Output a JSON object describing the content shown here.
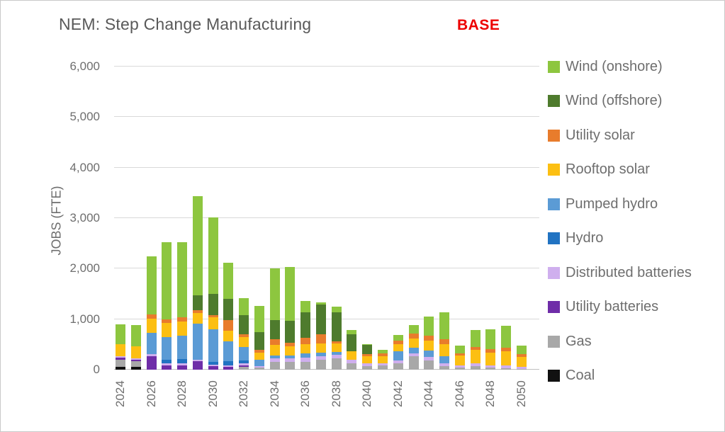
{
  "header": {
    "title": "NEM: Step Change Manufacturing",
    "badge": "BASE",
    "badge_color": "#ed0000"
  },
  "y_axis": {
    "label": "JOBS (FTE)",
    "tick_labels": [
      "0",
      "1,000",
      "2,000",
      "3,000",
      "4,000",
      "5,000",
      "6,000"
    ],
    "tick_values": [
      0,
      1000,
      2000,
      3000,
      4000,
      5000,
      6000
    ]
  },
  "chart_data": {
    "type": "bar",
    "subtype": "stacked",
    "title": "NEM: Step Change Manufacturing",
    "ylabel": "JOBS (FTE)",
    "ylim": [
      0,
      6000
    ],
    "grid": true,
    "legend_position": "right",
    "x_label_every": 2,
    "categories": [
      2024,
      2025,
      2026,
      2027,
      2028,
      2029,
      2030,
      2031,
      2032,
      2033,
      2034,
      2035,
      2036,
      2037,
      2038,
      2039,
      2040,
      2041,
      2042,
      2043,
      2044,
      2045,
      2046,
      2047,
      2048,
      2049,
      2050
    ],
    "series": [
      {
        "name": "Coal",
        "color": "#111111",
        "values": [
          60,
          55,
          0,
          0,
          0,
          0,
          0,
          0,
          0,
          0,
          0,
          0,
          0,
          0,
          0,
          0,
          0,
          0,
          0,
          0,
          0,
          0,
          0,
          0,
          0,
          0,
          0
        ]
      },
      {
        "name": "Gas",
        "color": "#a8a8a8",
        "values": [
          140,
          115,
          0,
          0,
          0,
          0,
          0,
          0,
          60,
          45,
          160,
          150,
          160,
          190,
          225,
          120,
          70,
          85,
          125,
          270,
          185,
          75,
          40,
          65,
          40,
          30,
          20
        ]
      },
      {
        "name": "Utility batteries",
        "color": "#6f2da8",
        "values": [
          45,
          30,
          270,
          90,
          90,
          170,
          75,
          55,
          20,
          0,
          0,
          0,
          0,
          0,
          0,
          0,
          0,
          0,
          0,
          0,
          0,
          0,
          0,
          0,
          0,
          0,
          0
        ]
      },
      {
        "name": "Distributed batteries",
        "color": "#cfafee",
        "values": [
          25,
          30,
          40,
          30,
          30,
          25,
          30,
          30,
          40,
          30,
          70,
          70,
          80,
          75,
          65,
          70,
          50,
          40,
          55,
          55,
          70,
          55,
          45,
          60,
          50,
          50,
          40
        ]
      },
      {
        "name": "Hydro",
        "color": "#2173c2",
        "values": [
          0,
          0,
          0,
          70,
          85,
          0,
          55,
          80,
          60,
          0,
          0,
          0,
          0,
          0,
          0,
          0,
          0,
          0,
          0,
          0,
          0,
          0,
          0,
          0,
          0,
          0,
          0
        ]
      },
      {
        "name": "Pumped hydro",
        "color": "#5b9bd5",
        "values": [
          0,
          0,
          420,
          460,
          475,
          710,
          635,
          395,
          270,
          115,
          45,
          55,
          85,
          70,
          60,
          0,
          0,
          0,
          180,
          115,
          125,
          140,
          0,
          0,
          0,
          0,
          0
        ]
      },
      {
        "name": "Rooftop solar",
        "color": "#fcbf12",
        "values": [
          230,
          240,
          280,
          280,
          280,
          210,
          240,
          210,
          190,
          145,
          210,
          185,
          175,
          180,
          170,
          175,
          140,
          140,
          150,
          175,
          190,
          235,
          200,
          270,
          250,
          290,
          190
        ]
      },
      {
        "name": "Utility solar",
        "color": "#e87c2c",
        "values": [
          0,
          0,
          85,
          70,
          85,
          70,
          40,
          210,
          55,
          55,
          115,
          70,
          135,
          180,
          35,
          0,
          55,
          55,
          70,
          95,
          110,
          95,
          40,
          60,
          65,
          70,
          55
        ]
      },
      {
        "name": "Wind (offshore)",
        "color": "#4e7b2d",
        "values": [
          0,
          0,
          0,
          0,
          0,
          285,
          425,
          425,
          380,
          350,
          380,
          435,
          495,
          600,
          580,
          335,
          175,
          0,
          0,
          0,
          0,
          0,
          0,
          0,
          0,
          0,
          0
        ]
      },
      {
        "name": "Wind (onshore)",
        "color": "#8dc63f",
        "values": [
          400,
          410,
          1155,
          1520,
          1475,
          1970,
          1520,
          715,
          340,
          520,
          1020,
          1075,
          230,
          35,
          115,
          80,
          10,
          70,
          110,
          180,
          375,
          535,
          150,
          325,
          390,
          435,
          170
        ]
      }
    ]
  }
}
